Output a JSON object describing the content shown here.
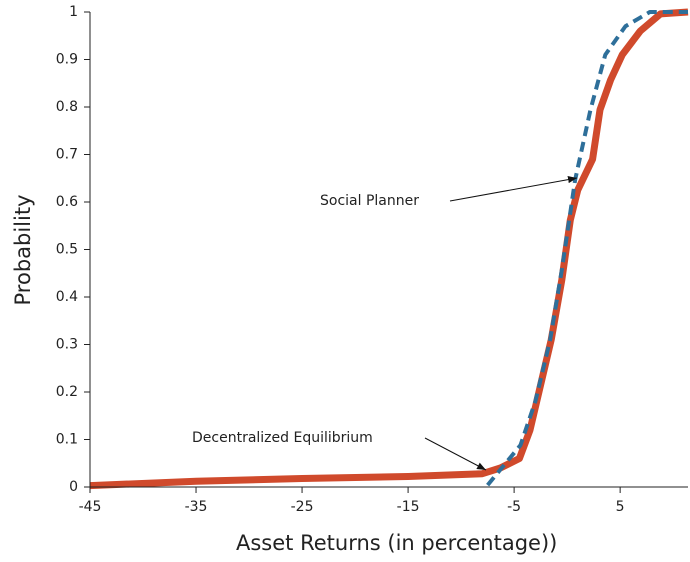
{
  "chart_data": {
    "type": "line",
    "xlabel": "Asset Returns  (in percentage))",
    "ylabel": "Probability",
    "annotations": [
      "Social Planner",
      "Decentralized Equilibrium"
    ],
    "xlim": [
      -45,
      11.4
    ],
    "xticks": [
      -45,
      -35,
      -25,
      -15,
      -5,
      5
    ],
    "ylim": [
      0,
      1
    ],
    "yticks": [
      0,
      0.1,
      0.2,
      0.3,
      0.4,
      0.5,
      0.6,
      0.7,
      0.8,
      0.9,
      1
    ],
    "series": [
      {
        "color": "#d04a2c",
        "dashed": false,
        "x": [
          -45,
          -35,
          -25,
          -15,
          -8,
          -6.3,
          -4.5,
          -3.5,
          -2.5,
          -1.5,
          -0.5,
          0.3,
          1.0,
          2.4,
          3.1,
          4.1,
          5.2,
          6.9,
          8.8,
          11.4
        ],
        "values": [
          0.003,
          0.012,
          0.018,
          0.022,
          0.028,
          0.04,
          0.06,
          0.12,
          0.215,
          0.31,
          0.436,
          0.562,
          0.625,
          0.69,
          0.794,
          0.857,
          0.91,
          0.96,
          0.996,
          1
        ]
      },
      {
        "color": "#2e6f9a",
        "dashed": true,
        "x": [
          -7.5,
          -4.4,
          -3.0,
          -1.6,
          -0.5,
          0.75,
          2.2,
          3.6,
          5.5,
          7.8,
          11.4
        ],
        "values": [
          0.004,
          0.088,
          0.18,
          0.31,
          0.457,
          0.646,
          0.794,
          0.91,
          0.97,
          1,
          1
        ]
      }
    ]
  }
}
